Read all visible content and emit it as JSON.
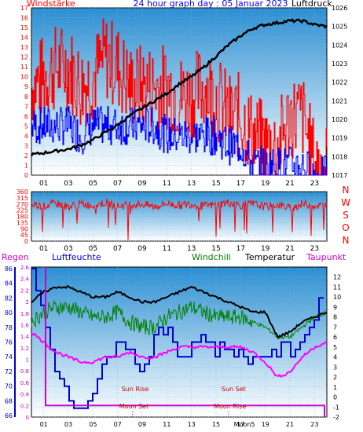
{
  "header": {
    "title": "24 hour graph day : 05 Januar 2023",
    "left_label": "Windstärke",
    "right_label": "Luftdruck"
  },
  "colors": {
    "wind_speed": "#ff0000",
    "wind_gust": "#0000ff",
    "pressure": "#000000",
    "direction": "#ff0000",
    "rain": "#0000ff",
    "humidity": "#0000cc",
    "windchill": "#008000",
    "temperature": "#000000",
    "dewpoint": "#ff00ff",
    "sun_moon": "#cc0000",
    "panel_top": "#2c8fd2",
    "panel_bottom": "#ffffff"
  },
  "x_hour_labels": [
    "01",
    "03",
    "05",
    "07",
    "09",
    "11",
    "13",
    "15",
    "17",
    "19",
    "21",
    "23"
  ],
  "chart_data": [
    {
      "type": "line",
      "title": "24 hour graph day : 05 Januar 2023",
      "ylabel_left": "Windstärke",
      "ylabel_right": "Luftdruck",
      "ylim_left": [
        0,
        17
      ],
      "ylim_right": [
        1017,
        1026
      ],
      "left_ticks": [
        "0",
        "1",
        "2",
        "3",
        "4",
        "5",
        "6",
        "7",
        "8",
        "9",
        "10",
        "11",
        "12",
        "13",
        "14",
        "15",
        "16",
        "17"
      ],
      "right_ticks": [
        "1017",
        "1018",
        "1019",
        "1020",
        "1021",
        "1022",
        "1023",
        "1024",
        "1025",
        "1026"
      ],
      "x_hours": [
        0,
        1,
        2,
        3,
        4,
        5,
        6,
        7,
        8,
        9,
        10,
        11,
        12,
        13,
        14,
        15,
        16,
        17,
        18,
        19,
        20,
        21,
        22,
        23,
        24
      ],
      "series": [
        {
          "key": "wind_speed",
          "axis": "left",
          "values": [
            9,
            10,
            11,
            11,
            9,
            10,
            12,
            11,
            9,
            9,
            9,
            9,
            8,
            8,
            9,
            8,
            6,
            6,
            4,
            3,
            3,
            6,
            6,
            1,
            1
          ]
        },
        {
          "key": "wind_gust",
          "axis": "left",
          "values": [
            5,
            5,
            5,
            5,
            4,
            5,
            5,
            5,
            5,
            5,
            5,
            4,
            4,
            4,
            4,
            4,
            3,
            3,
            1,
            1,
            1,
            1,
            1,
            0,
            0
          ]
        },
        {
          "key": "pressure",
          "axis": "right",
          "values": [
            1018.1,
            1018.2,
            1018.3,
            1018.4,
            1018.6,
            1018.9,
            1019.3,
            1019.7,
            1020.2,
            1020.6,
            1021.0,
            1021.4,
            1021.9,
            1022.3,
            1022.8,
            1023.4,
            1024.0,
            1024.5,
            1024.9,
            1025.1,
            1025.2,
            1025.3,
            1025.3,
            1025.1,
            1025.0
          ]
        }
      ]
    },
    {
      "type": "line",
      "title": "",
      "ylim_left": [
        0,
        360
      ],
      "left_ticks": [
        "0",
        "45",
        "90",
        "135",
        "180",
        "225",
        "270",
        "315",
        "360"
      ],
      "direction_labels": [
        "N",
        "W",
        "S",
        "O",
        "N"
      ],
      "x_hours": [
        0,
        1,
        2,
        3,
        4,
        5,
        6,
        7,
        8,
        9,
        10,
        11,
        12,
        13,
        14,
        15,
        16,
        17,
        18,
        19,
        20,
        21,
        22,
        23,
        24
      ],
      "series": [
        {
          "key": "direction",
          "axis": "left",
          "values": [
            270,
            255,
            275,
            250,
            270,
            260,
            280,
            255,
            265,
            270,
            250,
            275,
            260,
            270,
            255,
            265,
            280,
            260,
            270,
            250,
            265,
            240,
            270,
            260,
            255
          ]
        }
      ]
    },
    {
      "type": "line",
      "title": "",
      "legend": [
        "Regen",
        "Luftfeuchte",
        "Windchill",
        "Temperatur",
        "Taupunkt"
      ],
      "rain_ticks": [
        "0",
        "0.2",
        "0.4",
        "0.6",
        "0.8",
        "1",
        "1.2",
        "1.4",
        "1.6",
        "1.8",
        "2",
        "2.2",
        "2.4",
        "2.6"
      ],
      "humidity_ticks": [
        "66",
        "68",
        "70",
        "72",
        "74",
        "76",
        "78",
        "80",
        "82",
        "84",
        "86"
      ],
      "temp_ticks": [
        "-2",
        "-1",
        "0",
        "1",
        "2",
        "3",
        "4",
        "5",
        "6",
        "7",
        "8",
        "9",
        "10",
        "11",
        "12"
      ],
      "ylim_rain": [
        0,
        2.6
      ],
      "ylim_humidity": [
        65.8,
        86.2
      ],
      "ylim_temp": [
        -2,
        13
      ],
      "x_hours": [
        0,
        1,
        2,
        3,
        4,
        5,
        6,
        7,
        8,
        9,
        10,
        11,
        12,
        13,
        14,
        15,
        16,
        17,
        18,
        19,
        20,
        21,
        22,
        23,
        24
      ],
      "series": [
        {
          "key": "humidity",
          "axis": "humidity",
          "values": [
            86,
            80,
            72,
            68,
            67,
            70,
            73,
            77,
            75,
            72,
            77,
            78,
            74,
            76,
            77,
            75,
            75,
            74,
            74,
            74,
            75,
            75,
            76,
            80,
            84
          ]
        },
        {
          "key": "temperature",
          "axis": "temp",
          "values": [
            9.5,
            10.5,
            11,
            11,
            10.5,
            10,
            10,
            10.5,
            10,
            9.5,
            9.5,
            10,
            10.5,
            11,
            10.5,
            10,
            9.5,
            9,
            8.5,
            8.5,
            6,
            6.5,
            7.5,
            8,
            8.5
          ]
        },
        {
          "key": "windchill",
          "axis": "temp",
          "values": [
            7.5,
            8.5,
            9,
            9,
            8.5,
            8,
            8,
            8.5,
            7.5,
            7,
            7,
            8,
            8.5,
            9,
            8.5,
            8,
            8,
            8,
            7.5,
            7,
            6,
            6,
            7,
            8,
            8.5
          ]
        },
        {
          "key": "dewpoint",
          "axis": "temp",
          "values": [
            6.5,
            5.5,
            4.5,
            4,
            3.5,
            3.5,
            4,
            4,
            4.5,
            4,
            4,
            4.5,
            5,
            5,
            5,
            5,
            5,
            5,
            4.5,
            3.5,
            2,
            2.5,
            4,
            5,
            5.5
          ]
        },
        {
          "key": "rain",
          "axis": "rain",
          "values": [
            2.6,
            0.2,
            0.2,
            0.2,
            0.2,
            0.2,
            0.2,
            0.2,
            0.2,
            0.2,
            0.2,
            0.2,
            0.2,
            0.2,
            0.2,
            0.2,
            0.2,
            0.2,
            0.2,
            0.2,
            0.2,
            0.2,
            0.2,
            0.2,
            0.2
          ]
        }
      ],
      "events": [
        {
          "label": "Sun Rise",
          "hour": 8.3
        },
        {
          "label": "Sun Set",
          "hour": 16.3
        },
        {
          "label": "Moon Set",
          "hour": 8.2
        },
        {
          "label": "Moon Rise",
          "hour": 16.0
        }
      ],
      "moon_phase_label": "Moon5"
    }
  ]
}
